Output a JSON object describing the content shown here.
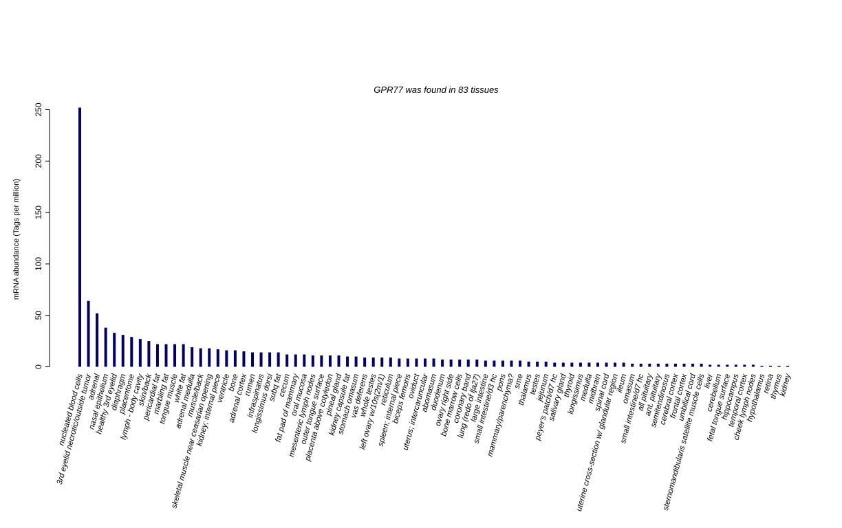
{
  "chart_data": {
    "type": "bar",
    "title": "GPR77  was found in  83  tissues",
    "ylabel": "mRNA abundance (Tags per million)",
    "xlabel": "",
    "ylim": [
      0,
      250
    ],
    "yticks": [
      0,
      50,
      100,
      150,
      200,
      250
    ],
    "grid": false,
    "bar_color": "#000066",
    "categories": [
      "nucleated blood cells",
      "3rd eyelid necrotic/outside tumor",
      "adrenal",
      "nasal epithelium",
      "healthy 3rd eyelid",
      "diaphragm",
      "placentome",
      "lymph - body cavity",
      "skin/back",
      "pericardial fat",
      "marbling fat",
      "tongue muscle",
      "white fat",
      "adrenal medulla",
      "muscle/back",
      "skeletal muscle near ceasarian opening",
      "kidney; internal piece",
      "ventricle",
      "bone",
      "adrenal cortex",
      "rumen",
      "infraspinatus",
      "longissimus dorsi",
      "subq fat",
      "cecum",
      "fat pad of mammary",
      "oral mucosa",
      "mesenteric lymph nodes",
      "outer tongue surface",
      "placenta above cotyledon",
      "pineal gland",
      "kidney capsule fat",
      "stomach omasum",
      "vas deferens",
      "whole testes",
      "left ovary w/10s(2m/1)",
      "reticulum",
      "spleen; internal piece",
      "biceps femoris",
      "oviduct",
      "uterus; intercaruncular",
      "abomasum",
      "duodenum",
      "ovary right side",
      "bone marrow cells",
      "coronary band",
      "lung (redo of lja27)",
      "large intestine",
      "small intestine/d3 hc",
      "pons",
      "mammary/parenchyma?",
      "sme",
      "thalamus",
      "testes",
      "jejunum",
      "peyer's patch/d7 hc",
      "salivary gland",
      "thyroid",
      "longissimus",
      "medulla",
      "midbrain",
      "spinal cord",
      "uterine cross-section w/ glandular region",
      "ileum",
      "omasum",
      "small intestine/d7 hc",
      "all pituitary",
      "ant. pituitary",
      "semitendinosus",
      "cerebral cortex",
      "frontal cortex",
      "umbilical cord",
      "sternomandibularis satellite muscle cells",
      "liver",
      "cerebellum",
      "fetal tongue surface",
      "hippocampus",
      "temporal cortex",
      "cheek lymph nodes",
      "hypothalamus",
      "retina",
      "thymus",
      "kidney"
    ],
    "values": [
      252,
      64,
      52,
      38,
      33,
      31,
      29,
      27,
      25,
      22,
      22,
      22,
      22,
      19,
      18,
      18,
      17,
      16,
      16,
      15,
      14,
      14,
      14,
      14,
      12,
      12,
      12,
      11,
      11,
      11,
      11,
      10,
      10,
      9,
      9,
      9,
      9,
      8,
      8,
      8,
      8,
      8,
      7,
      7,
      7,
      7,
      7,
      6,
      6,
      6,
      6,
      6,
      5,
      5,
      5,
      4,
      4,
      4,
      4,
      4,
      4,
      4,
      4,
      4,
      3,
      3,
      3,
      3,
      3,
      3,
      3,
      3,
      3,
      2,
      2,
      2,
      2,
      2,
      2,
      1,
      1,
      1,
      1
    ]
  }
}
